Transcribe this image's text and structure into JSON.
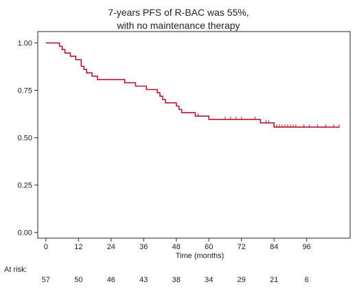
{
  "chart_data": {
    "type": "line",
    "title": [
      "7-years PFS of R-BAC was 55%,",
      "with no maintenance therapy"
    ],
    "xlabel": "Time (months)",
    "ylabel": "",
    "xlim": [
      -3,
      112
    ],
    "ylim": [
      -0.03,
      1.06
    ],
    "x_ticks": [
      0,
      12,
      24,
      36,
      48,
      60,
      72,
      84,
      96
    ],
    "y_ticks": [
      0.0,
      0.25,
      0.5,
      0.75,
      1.0
    ],
    "y_tick_labels": [
      "0.00",
      "0.25",
      "0.50",
      "0.75",
      "1.00"
    ],
    "grid": false,
    "series": [
      {
        "color": "#b5172f",
        "steps": [
          [
            0,
            1.0
          ],
          [
            5,
            0.982
          ],
          [
            6,
            0.965
          ],
          [
            7,
            0.947
          ],
          [
            9,
            0.93
          ],
          [
            11,
            0.912
          ],
          [
            13,
            0.877
          ],
          [
            14,
            0.86
          ],
          [
            15,
            0.842
          ],
          [
            17,
            0.825
          ],
          [
            19,
            0.807
          ],
          [
            29,
            0.79
          ],
          [
            33,
            0.772
          ],
          [
            37,
            0.754
          ],
          [
            41,
            0.737
          ],
          [
            42,
            0.719
          ],
          [
            43,
            0.702
          ],
          [
            44,
            0.684
          ],
          [
            48,
            0.667
          ],
          [
            49,
            0.649
          ],
          [
            50,
            0.632
          ],
          [
            55,
            0.614
          ],
          [
            60,
            0.596
          ],
          [
            79,
            0.578
          ],
          [
            84,
            0.556
          ],
          [
            108,
            0.556
          ]
        ],
        "censor_times": [
          56,
          66,
          68,
          70,
          72,
          77,
          79,
          81,
          82,
          84,
          85,
          86,
          87,
          88,
          89,
          90,
          91,
          92,
          95,
          97,
          100,
          103,
          106,
          108
        ]
      }
    ],
    "at_risk": {
      "label": "At risk:",
      "times": [
        0,
        12,
        24,
        36,
        48,
        60,
        72,
        84,
        96
      ],
      "counts": [
        "57",
        "50",
        "46",
        "43",
        "38",
        "34",
        "29",
        "21",
        "6"
      ]
    }
  }
}
